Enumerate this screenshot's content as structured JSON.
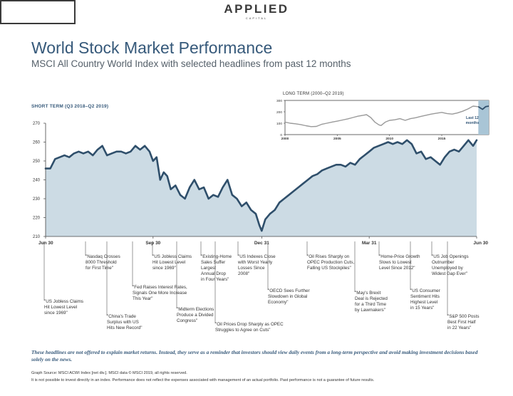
{
  "logo": {
    "word": "APPLIED",
    "sub": "CAPITAL"
  },
  "header": {
    "title": "World Stock Market Performance",
    "subtitle": "MSCI All Country World Index with selected headlines from past 12 months"
  },
  "colors": {
    "accent": "#36597a",
    "line": "#2f4f6b",
    "fill": "#ccdbe4",
    "highlight": "#a9c5d6"
  },
  "chart_data": [
    {
      "type": "area",
      "title": "SHORT TERM (Q3 2018–Q2 2019)",
      "ylim": [
        210,
        270
      ],
      "y_ticks": [
        210,
        220,
        230,
        240,
        250,
        260,
        270
      ],
      "x_ticks": [
        "Jun 30",
        "Sep 30",
        "Dec 31",
        "Mar 31",
        "Jun 30"
      ],
      "x_tick_positions": [
        0,
        91,
        183,
        274,
        365
      ],
      "grid": false,
      "x": [
        0,
        4,
        8,
        12,
        16,
        20,
        24,
        28,
        32,
        36,
        40,
        44,
        48,
        52,
        56,
        60,
        64,
        68,
        72,
        76,
        80,
        84,
        88,
        91,
        94,
        97,
        100,
        103,
        106,
        110,
        114,
        118,
        122,
        126,
        130,
        134,
        138,
        142,
        146,
        150,
        154,
        158,
        162,
        166,
        170,
        174,
        178,
        181,
        183,
        186,
        190,
        194,
        198,
        202,
        206,
        210,
        214,
        218,
        222,
        226,
        230,
        234,
        238,
        242,
        246,
        250,
        254,
        258,
        262,
        266,
        270,
        274,
        278,
        282,
        286,
        290,
        294,
        298,
        302,
        306,
        310,
        314,
        318,
        322,
        326,
        330,
        334,
        338,
        342,
        346,
        350,
        354,
        358,
        362,
        365
      ],
      "values": [
        246,
        246,
        251,
        252,
        253,
        252,
        254,
        255,
        254,
        255,
        253,
        256,
        258,
        253,
        254,
        255,
        255,
        254,
        255,
        258,
        256,
        258,
        255,
        250,
        252,
        240,
        244,
        242,
        235,
        237,
        232,
        230,
        236,
        240,
        235,
        236,
        230,
        232,
        231,
        236,
        240,
        232,
        230,
        226,
        228,
        224,
        222,
        216,
        213,
        219,
        222,
        224,
        228,
        230,
        232,
        234,
        236,
        238,
        240,
        242,
        243,
        245,
        246,
        247,
        248,
        248,
        247,
        249,
        248,
        251,
        253,
        255,
        257,
        258,
        259,
        260,
        259,
        260,
        259,
        261,
        259,
        254,
        255,
        251,
        252,
        250,
        248,
        252,
        255,
        256,
        255,
        258,
        261,
        258,
        261
      ]
    },
    {
      "type": "line",
      "title": "LONG TERM (2000–Q2 2019)",
      "ylim": [
        0,
        300
      ],
      "y_ticks": [
        0,
        100,
        200,
        300
      ],
      "x_ticks": [
        "2000",
        "2005",
        "2010",
        "2015"
      ],
      "annotation": "Last 12\nmonths",
      "x": [
        2000.0,
        2000.5,
        2001.0,
        2001.5,
        2002.0,
        2002.5,
        2003.0,
        2003.5,
        2004.0,
        2004.5,
        2005.0,
        2005.5,
        2006.0,
        2006.5,
        2007.0,
        2007.5,
        2007.8,
        2008.2,
        2008.6,
        2009.0,
        2009.2,
        2009.6,
        2010.0,
        2010.5,
        2011.0,
        2011.5,
        2012.0,
        2012.5,
        2013.0,
        2013.5,
        2014.0,
        2014.5,
        2015.0,
        2015.5,
        2016.0,
        2016.5,
        2017.0,
        2017.5,
        2018.0,
        2018.5,
        2018.9,
        2019.2,
        2019.5
      ],
      "values": [
        110,
        100,
        95,
        88,
        78,
        70,
        72,
        90,
        100,
        110,
        118,
        128,
        138,
        150,
        162,
        170,
        175,
        150,
        110,
        85,
        80,
        110,
        125,
        130,
        140,
        125,
        140,
        148,
        160,
        170,
        180,
        188,
        195,
        185,
        180,
        190,
        205,
        225,
        250,
        245,
        222,
        245,
        250
      ]
    }
  ],
  "headlines": [
    "\"US Jobless Claims\nHit Lowest Level\nsince 1969\"",
    "\"Nasdaq Crosses\n8000 Threshold\nfor First Time\"",
    "\"China's Trade\nSurplus with US\nHits New Record\"",
    "\"Fed Raises Interest Rates,\nSignals One More Increase\nThis Year\"",
    "\"US Jobless Claims\nHit Lowest Level\nsince 1969\"",
    "\"Midterm Elections\nProduce a Divided\nCongress\"",
    "\"Existing-Home\nSales Suffer\nLargest\nAnnual Drop\nin Four Years\"",
    "\"Oil Prices Drop Sharply as OPEC\nStruggles to Agree on Cuts\"",
    "\"US Indexes Close\nwith Worst Yearly\nLosses Since\n2008\"",
    "\"OECD Sees Further\nSlowdown in Global\nEconomy\"",
    "\"Oil Rises Sharply on\nOPEC Production Cuts,\nFalling US Stockpiles\"",
    "\"May's Brexit\nDeal is Rejected\nfor a Third Time\nby Lawmakers\"",
    "\"Home-Price Growth\nSlows to Lowest\nLevel Since 2012\"",
    "\"US Consumer\nSentiment Hits\nHighest Level\nin 15 Years\"",
    "\"US Job Openings\nOutnumber\nUnemployed by\nWidest Gap Ever\"",
    "\"S&P 500 Posts\nBest First Half\nin 22 Years\""
  ],
  "footer": {
    "note": "These headlines are not offered to explain market returns. Instead, they serve as a reminder that investors should view daily events from a long-term perspective and avoid making investment decisions based solely on the news.",
    "source": "Graph Source: MSCI ACWI Index [net div.]. MSCI data © MSCI 2019, all rights reserved.",
    "disclaimer": "It is not possible to invest directly in an index. Performance does not reflect the expenses associated with management of an actual portfolio. Past performance is not a guarantee of future results."
  }
}
